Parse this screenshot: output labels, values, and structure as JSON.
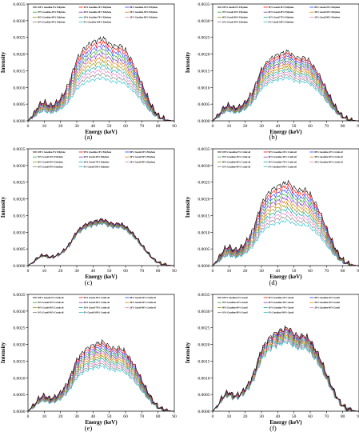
{
  "axes": {
    "xlabel": "Energy (keV)",
    "ylabel": "Intensity"
  },
  "x_ticks": [
    0,
    10,
    20,
    30,
    40,
    50,
    60,
    70,
    80,
    90
  ],
  "y_ticks": [
    "0.0000",
    "0.0005",
    "0.0010",
    "0.0015",
    "0.0020",
    "0.0025",
    "0.0030",
    "0.0035"
  ],
  "colors": [
    "#000000",
    "#ff0000",
    "#1f3bff",
    "#2ca02c",
    "#7b2fbe",
    "#e07b00",
    "#8b8b00",
    "#00a0a0",
    "#e377c2",
    "#7f7f7f",
    "#17becf"
  ],
  "chart_data": [
    {
      "panel": "(a)",
      "type": "line",
      "xlabel": "Energy (keV)",
      "ylabel": "Intensity",
      "xlim": [
        0,
        90
      ],
      "ylim": [
        0,
        0.0035
      ],
      "peak_max": 0.00248,
      "peak_min": 0.00129,
      "series": [
        {
          "name": "100% Gasoline-0% Ethylene"
        },
        {
          "name": "90% Gasoline-10% Ethylene"
        },
        {
          "name": "80% Gasoline-20% Ethylene"
        },
        {
          "name": "70% Gasoline-30% Ethylene"
        },
        {
          "name": "60% Gasoline-40% Ethylene"
        },
        {
          "name": "50% Gasoline-50% Ethylene"
        },
        {
          "name": "40% Gasoline-60% Ethylene"
        },
        {
          "name": "30% Gasoline-70% Ethylene"
        },
        {
          "name": "20% Gasoline-80% Ethylene"
        },
        {
          "name": "10% Gasoline-90% Ethylene"
        },
        {
          "name": "0% Gasoline-100% Ethylene"
        }
      ]
    },
    {
      "panel": "(b)",
      "type": "line",
      "xlabel": "Energy (keV)",
      "ylabel": "Intensity",
      "xlim": [
        0,
        90
      ],
      "ylim": [
        0,
        0.0035
      ],
      "peak_max": 0.00208,
      "peak_min": 0.00129,
      "series": [
        {
          "name": "100% Gasoil-0% Ethylene"
        },
        {
          "name": "90% Gasoil-10% Ethylene"
        },
        {
          "name": "80% Gasoil-20% Ethylene"
        },
        {
          "name": "70% Gasoil-30% Ethylene"
        },
        {
          "name": "60% Gasoil-40% Ethylene"
        },
        {
          "name": "50% Gasoil-50% Ethylene"
        },
        {
          "name": "40% Gasoil-60% Ethylene"
        },
        {
          "name": "30% Gasoil-70% Ethylene"
        },
        {
          "name": "20% Gasoil-80% Ethylene"
        },
        {
          "name": "10% Gasoil-90% Ethylene"
        },
        {
          "name": "0% Gasoil-100% Ethylene"
        }
      ]
    },
    {
      "panel": "(c)",
      "type": "line",
      "xlabel": "Energy (keV)",
      "ylabel": "Intensity",
      "xlim": [
        0,
        90
      ],
      "ylim": [
        0,
        0.0035
      ],
      "peak_max": 0.00139,
      "peak_min": 0.00126,
      "series": [
        {
          "name": "100% Gasoline-0% Ethylene"
        },
        {
          "name": "90% Gasoline-10% Ethylene"
        },
        {
          "name": "80% Gasoil-20% Ethylene"
        },
        {
          "name": "70% Gasoil-30% Ethylene"
        },
        {
          "name": "60% Gasoil-40% Ethylene"
        },
        {
          "name": "50% Gasoil-50% Ethylene"
        },
        {
          "name": "40% Gasoil-60% Ethylene"
        },
        {
          "name": "30% Gasoil-70% Ethylene"
        },
        {
          "name": "20% Gasoil-80% Ethylene"
        },
        {
          "name": "10% Gasoil-90% Ethylene"
        },
        {
          "name": "0% Gasoil-100% Ethylene"
        }
      ]
    },
    {
      "panel": "(d)",
      "type": "line",
      "xlabel": "Energy (keV)",
      "ylabel": "Intensity",
      "xlim": [
        0,
        90
      ],
      "ylim": [
        0,
        0.0035
      ],
      "peak_max": 0.0025,
      "peak_min": 0.00135,
      "series": [
        {
          "name": "100% Gasoline-0% Crude oil"
        },
        {
          "name": "90% Gasoline-10% Crude oil"
        },
        {
          "name": "80% Gasoline-20% Crude oil"
        },
        {
          "name": "70% Gasoline-30% Crude oil"
        },
        {
          "name": "60% Gasoline-40% Crude oil"
        },
        {
          "name": "50% Gasoline-50% Crude oil"
        },
        {
          "name": "40% Gasoline-60% Crude oil"
        },
        {
          "name": "30% Gasoline-70% Crude oil"
        },
        {
          "name": "20% Gasoline-80% Crude oil"
        },
        {
          "name": "10% Gasoline-90% Crude oil"
        },
        {
          "name": "0% Gasoline-100% Crude oil"
        }
      ]
    },
    {
      "panel": "(e)",
      "type": "line",
      "xlabel": "Energy (keV)",
      "ylabel": "Intensity",
      "xlim": [
        0,
        90
      ],
      "ylim": [
        0,
        0.0035
      ],
      "peak_max": 0.00208,
      "peak_min": 0.00135,
      "series": [
        {
          "name": "100% Gasoil-0% Crude oil"
        },
        {
          "name": "90% Gasoil-10% Crude oil"
        },
        {
          "name": "80% Gasoil-20% Crude oil"
        },
        {
          "name": "70% Gasoil-30% Crude oil"
        },
        {
          "name": "60% Gasoil-40% Crude oil"
        },
        {
          "name": "50% Gasoil-50% Crude oil"
        },
        {
          "name": "40% Gasoil-60% Crude oil"
        },
        {
          "name": "30% Gasoil-70% Crude oil"
        },
        {
          "name": "20% Gasoil-80% Crude oil"
        },
        {
          "name": "10% Gasoil-90% Crude oil"
        },
        {
          "name": "0% Gasoil-100% Crude oil"
        }
      ]
    },
    {
      "panel": "(f)",
      "type": "line",
      "xlabel": "Energy (keV)",
      "ylabel": "Intensity",
      "xlim": [
        0,
        90
      ],
      "ylim": [
        0,
        0.0035
      ],
      "peak_max": 0.0025,
      "peak_min": 0.00208,
      "series": [
        {
          "name": "100% Gasoline-0% Gasoil"
        },
        {
          "name": "90% Gasoline-10% Gasoil"
        },
        {
          "name": "80% Gasoline-20% Gasoil"
        },
        {
          "name": "70% Gasoline-30% Gasoil"
        },
        {
          "name": "60% Gasoline-40% Gasoil"
        },
        {
          "name": "50% Gasoline-50% Gasoil"
        },
        {
          "name": "40% Gasoline-60% Gasoil"
        },
        {
          "name": "30% Gasoline-70% Gasoil"
        },
        {
          "name": "20% Gasoline-80% Gasoil"
        },
        {
          "name": "10% Gasoline-90% Gasoil"
        },
        {
          "name": "0% Gasoline-100% Gasoil"
        }
      ]
    }
  ]
}
